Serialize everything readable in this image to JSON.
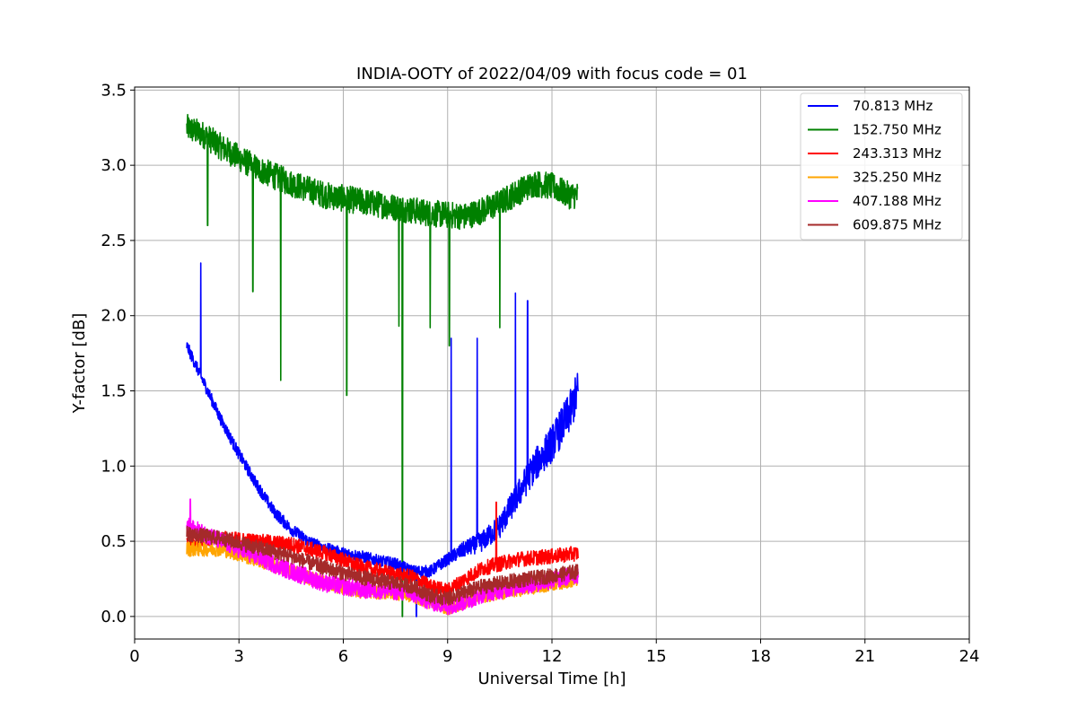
{
  "chart_data": {
    "type": "line",
    "title": "INDIA-OOTY of 2022/04/09 with focus code = 01",
    "xlabel": "Universal Time [h]",
    "ylabel": "Y-factor [dB]",
    "xlim": [
      0,
      24
    ],
    "ylim": [
      -0.15,
      3.52
    ],
    "xticks": [
      0,
      3,
      6,
      9,
      12,
      15,
      18,
      21,
      24
    ],
    "xtick_labels": [
      "0",
      "3",
      "6",
      "9",
      "12",
      "15",
      "18",
      "21",
      "24"
    ],
    "yticks": [
      0.0,
      0.5,
      1.0,
      1.5,
      2.0,
      2.5,
      3.0,
      3.5
    ],
    "ytick_labels": [
      "0.0",
      "0.5",
      "1.0",
      "1.5",
      "2.0",
      "2.5",
      "3.0",
      "3.5"
    ],
    "grid": true,
    "legend_position": "top-right",
    "series": [
      {
        "name": " 70.813 MHz",
        "color": "#0000ff",
        "noise": 0.08,
        "x": [
          1.5,
          2.0,
          2.5,
          3.0,
          3.5,
          4.0,
          4.5,
          5.0,
          5.5,
          6.0,
          6.5,
          7.0,
          7.5,
          8.0,
          8.5,
          9.0,
          9.5,
          10.0,
          10.5,
          11.0,
          11.5,
          12.0,
          12.5,
          12.75
        ],
        "y": [
          1.8,
          1.55,
          1.3,
          1.08,
          0.88,
          0.7,
          0.58,
          0.5,
          0.45,
          0.42,
          0.4,
          0.37,
          0.35,
          0.3,
          0.3,
          0.38,
          0.45,
          0.5,
          0.6,
          0.8,
          1.0,
          1.15,
          1.35,
          1.5
        ],
        "spikes": [
          [
            1.9,
            2.35
          ],
          [
            9.1,
            1.85
          ],
          [
            9.85,
            1.85
          ],
          [
            10.95,
            2.15
          ],
          [
            11.3,
            2.1
          ],
          [
            8.1,
            0.0
          ]
        ]
      },
      {
        "name": "152.750 MHz",
        "color": "#008000",
        "noise": 0.09,
        "x": [
          1.5,
          2.0,
          2.5,
          3.0,
          3.5,
          4.0,
          4.5,
          5.0,
          5.5,
          6.0,
          6.5,
          7.0,
          7.5,
          8.0,
          8.5,
          9.0,
          9.5,
          10.0,
          10.5,
          11.0,
          11.5,
          12.0,
          12.5,
          12.75
        ],
        "y": [
          3.25,
          3.2,
          3.12,
          3.05,
          2.98,
          2.93,
          2.88,
          2.84,
          2.8,
          2.78,
          2.76,
          2.74,
          2.72,
          2.7,
          2.68,
          2.67,
          2.66,
          2.7,
          2.75,
          2.82,
          2.88,
          2.86,
          2.8,
          2.8
        ],
        "spikes": [
          [
            2.1,
            2.6
          ],
          [
            3.4,
            2.16
          ],
          [
            4.2,
            1.57
          ],
          [
            6.1,
            1.47
          ],
          [
            7.6,
            1.93
          ],
          [
            7.7,
            0.0
          ],
          [
            8.5,
            1.92
          ],
          [
            9.05,
            1.8
          ],
          [
            10.5,
            1.92
          ]
        ]
      },
      {
        "name": "243.313 MHz",
        "color": "#ff0000",
        "noise": 0.05,
        "x": [
          1.5,
          2.5,
          3.5,
          4.5,
          5.5,
          6.5,
          7.5,
          8.0,
          8.5,
          9.0,
          9.5,
          10.0,
          11.0,
          12.0,
          12.75
        ],
        "y": [
          0.5,
          0.52,
          0.5,
          0.48,
          0.42,
          0.33,
          0.28,
          0.26,
          0.2,
          0.17,
          0.25,
          0.32,
          0.38,
          0.4,
          0.42
        ],
        "spikes": [
          [
            10.4,
            0.76
          ]
        ]
      },
      {
        "name": "325.250 MHz",
        "color": "#ffa500",
        "noise": 0.05,
        "x": [
          1.5,
          2.5,
          3.5,
          4.5,
          5.5,
          6.5,
          7.5,
          8.0,
          8.5,
          9.0,
          9.5,
          10.0,
          11.0,
          12.0,
          12.75
        ],
        "y": [
          0.45,
          0.45,
          0.38,
          0.3,
          0.22,
          0.17,
          0.16,
          0.14,
          0.1,
          0.06,
          0.1,
          0.14,
          0.18,
          0.22,
          0.25
        ],
        "spikes": []
      },
      {
        "name": "407.188 MHz",
        "color": "#ff00ff",
        "noise": 0.06,
        "x": [
          1.5,
          2.5,
          3.5,
          4.5,
          5.5,
          6.5,
          7.5,
          8.0,
          8.5,
          9.0,
          9.5,
          10.0,
          11.0,
          12.0,
          12.75
        ],
        "y": [
          0.6,
          0.5,
          0.4,
          0.3,
          0.22,
          0.18,
          0.17,
          0.15,
          0.1,
          0.07,
          0.1,
          0.15,
          0.2,
          0.24,
          0.28
        ],
        "spikes": [
          [
            1.6,
            0.78
          ]
        ]
      },
      {
        "name": "609.875 MHz",
        "color": "#a52a2a",
        "noise": 0.05,
        "x": [
          1.5,
          2.5,
          3.5,
          4.5,
          5.5,
          6.5,
          7.5,
          8.0,
          8.5,
          9.0,
          9.5,
          10.0,
          11.0,
          12.0,
          12.75
        ],
        "y": [
          0.55,
          0.52,
          0.46,
          0.4,
          0.32,
          0.26,
          0.22,
          0.2,
          0.14,
          0.12,
          0.16,
          0.2,
          0.24,
          0.27,
          0.3
        ],
        "spikes": []
      }
    ]
  }
}
